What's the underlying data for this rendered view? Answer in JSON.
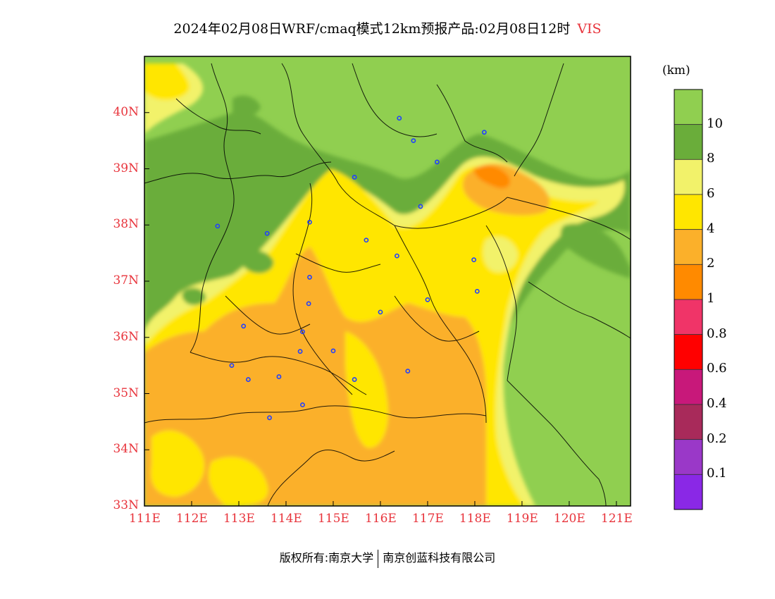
{
  "title": {
    "text": "2024年02月08日WRF/cmaq模式12km预报产品:02月08日12时",
    "variable": "VIS"
  },
  "colors": {
    "axis_label": "#e8343c",
    "vis_gt10": "#90cf50",
    "vis_8_10": "#6aad3a",
    "vis_6_8": "#f2f26a",
    "vis_4_6": "#ffe600",
    "vis_2_4": "#fbb02a",
    "vis_1_2": "#ff8a00",
    "vis_08_1": "#f03468",
    "vis_06_08": "#ff0000",
    "vis_04_06": "#c8187a",
    "vis_02_04": "#a82a5a",
    "vis_01_02": "#9a38c8",
    "vis_lt01": "#8a28e6",
    "city_marker": "#2040ff"
  },
  "map": {
    "lon_range": [
      111,
      121.3
    ],
    "lat_range": [
      33,
      41
    ],
    "lat_labels": [
      "33N",
      "34N",
      "35N",
      "36N",
      "37N",
      "38N",
      "39N",
      "40N"
    ],
    "lon_labels": [
      "111E",
      "112E",
      "113E",
      "114E",
      "115E",
      "116E",
      "117E",
      "118E",
      "119E",
      "120E",
      "121E"
    ],
    "city_markers": [
      {
        "lon": 116.4,
        "lat": 39.9
      },
      {
        "lon": 116.7,
        "lat": 39.5
      },
      {
        "lon": 118.2,
        "lat": 39.65
      },
      {
        "lon": 117.2,
        "lat": 39.12
      },
      {
        "lon": 115.45,
        "lat": 38.85
      },
      {
        "lon": 116.85,
        "lat": 38.33
      },
      {
        "lon": 112.55,
        "lat": 37.98
      },
      {
        "lon": 113.6,
        "lat": 37.85
      },
      {
        "lon": 114.5,
        "lat": 38.05
      },
      {
        "lon": 115.7,
        "lat": 37.73
      },
      {
        "lon": 116.35,
        "lat": 37.45
      },
      {
        "lon": 117.98,
        "lat": 37.38
      },
      {
        "lon": 114.5,
        "lat": 37.07
      },
      {
        "lon": 117.0,
        "lat": 36.67
      },
      {
        "lon": 118.05,
        "lat": 36.82
      },
      {
        "lon": 114.48,
        "lat": 36.6
      },
      {
        "lon": 116.0,
        "lat": 36.45
      },
      {
        "lon": 113.1,
        "lat": 36.2
      },
      {
        "lon": 114.35,
        "lat": 36.1
      },
      {
        "lon": 114.3,
        "lat": 35.75
      },
      {
        "lon": 115.0,
        "lat": 35.76
      },
      {
        "lon": 112.85,
        "lat": 35.5
      },
      {
        "lon": 113.2,
        "lat": 35.25
      },
      {
        "lon": 113.85,
        "lat": 35.3
      },
      {
        "lon": 115.45,
        "lat": 35.25
      },
      {
        "lon": 116.58,
        "lat": 35.4
      },
      {
        "lon": 114.35,
        "lat": 34.8
      },
      {
        "lon": 113.65,
        "lat": 34.57
      }
    ]
  },
  "colorbar": {
    "unit": "(km)",
    "labels": [
      "10",
      "8",
      "6",
      "4",
      "2",
      "1",
      "0.8",
      "0.6",
      "0.4",
      "0.2",
      "0.1"
    ]
  },
  "copyright": {
    "owner": "版权所有:南京大学",
    "company": "南京创蓝科技有限公司"
  }
}
